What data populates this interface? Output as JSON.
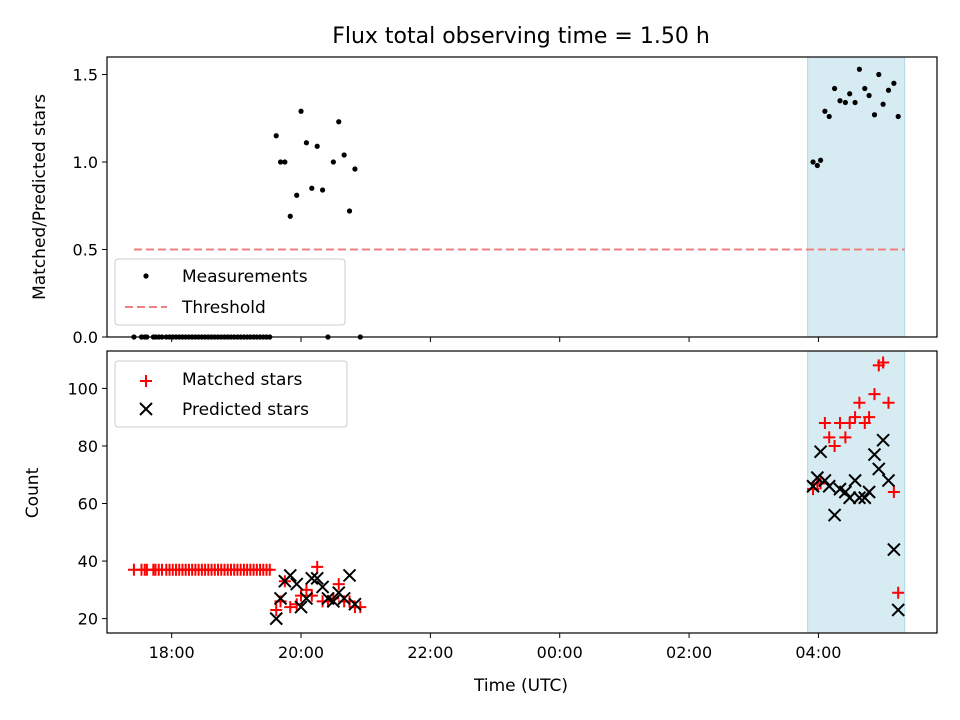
{
  "chart_data": [
    {
      "type": "scatter",
      "title": "Flux total observing time = 1.50 h",
      "xlabel": "",
      "ylabel": "Matched/Predicted stars",
      "xlim": [
        "17:00",
        "05:50"
      ],
      "ylim": [
        0,
        1.6
      ],
      "y_ticks": [
        "0.0",
        "0.5",
        "1.0",
        "1.5"
      ],
      "highlight_span": {
        "start": "03:50",
        "end": "05:20",
        "color": "#add8e6"
      },
      "legend": {
        "position": "lower-left",
        "entries": [
          "Measurements",
          "Threshold"
        ]
      },
      "series": [
        {
          "name": "Measurements",
          "marker": "dot",
          "color": "#000000",
          "points": [
            [
              "17:25",
              0
            ],
            [
              "17:32",
              0
            ],
            [
              "17:35",
              0
            ],
            [
              "17:37",
              0
            ],
            [
              "17:43",
              0
            ],
            [
              "17:45",
              0
            ],
            [
              "17:48",
              0
            ],
            [
              "17:51",
              0
            ],
            [
              "17:55",
              0
            ],
            [
              "17:58",
              0
            ],
            [
              "18:01",
              0
            ],
            [
              "18:04",
              0
            ],
            [
              "18:07",
              0
            ],
            [
              "18:10",
              0
            ],
            [
              "18:13",
              0
            ],
            [
              "18:16",
              0
            ],
            [
              "18:19",
              0
            ],
            [
              "18:22",
              0
            ],
            [
              "18:25",
              0
            ],
            [
              "18:28",
              0
            ],
            [
              "18:31",
              0
            ],
            [
              "18:34",
              0
            ],
            [
              "18:37",
              0
            ],
            [
              "18:40",
              0
            ],
            [
              "18:43",
              0
            ],
            [
              "18:46",
              0
            ],
            [
              "18:49",
              0
            ],
            [
              "18:52",
              0
            ],
            [
              "18:55",
              0
            ],
            [
              "18:58",
              0
            ],
            [
              "19:01",
              0
            ],
            [
              "19:04",
              0
            ],
            [
              "19:07",
              0
            ],
            [
              "19:10",
              0
            ],
            [
              "19:13",
              0
            ],
            [
              "19:16",
              0
            ],
            [
              "19:19",
              0
            ],
            [
              "19:22",
              0
            ],
            [
              "19:25",
              0
            ],
            [
              "19:28",
              0
            ],
            [
              "19:31",
              0
            ],
            [
              "19:37",
              1.15
            ],
            [
              "19:41",
              1.0
            ],
            [
              "19:45",
              1.0
            ],
            [
              "19:50",
              0.69
            ],
            [
              "19:56",
              0.81
            ],
            [
              "20:00",
              1.29
            ],
            [
              "20:05",
              1.11
            ],
            [
              "20:10",
              0.85
            ],
            [
              "20:15",
              1.09
            ],
            [
              "20:20",
              0.84
            ],
            [
              "20:25",
              0.0
            ],
            [
              "20:30",
              1.0
            ],
            [
              "20:35",
              1.23
            ],
            [
              "20:40",
              1.04
            ],
            [
              "20:45",
              0.72
            ],
            [
              "20:50",
              0.96
            ],
            [
              "20:55",
              0.0
            ],
            [
              "03:55",
              1.0
            ],
            [
              "03:59",
              0.98
            ],
            [
              "04:02",
              1.01
            ],
            [
              "04:06",
              1.29
            ],
            [
              "04:10",
              1.26
            ],
            [
              "04:15",
              1.42
            ],
            [
              "04:20",
              1.35
            ],
            [
              "04:25",
              1.34
            ],
            [
              "04:29",
              1.39
            ],
            [
              "04:34",
              1.34
            ],
            [
              "04:38",
              1.53
            ],
            [
              "04:43",
              1.42
            ],
            [
              "04:47",
              1.38
            ],
            [
              "04:52",
              1.27
            ],
            [
              "04:56",
              1.5
            ],
            [
              "05:00",
              1.33
            ],
            [
              "05:05",
              1.41
            ],
            [
              "05:10",
              1.45
            ],
            [
              "05:14",
              1.26
            ]
          ]
        },
        {
          "name": "Threshold",
          "style": "dashed",
          "color": "#f08080",
          "points": [
            [
              "17:25",
              0.5
            ],
            [
              "05:20",
              0.5
            ]
          ]
        }
      ]
    },
    {
      "type": "scatter",
      "title": "",
      "xlabel": "Time (UTC)",
      "ylabel": "Count",
      "xlim": [
        "17:00",
        "05:50"
      ],
      "ylim": [
        15,
        113
      ],
      "x_ticks": [
        "18:00",
        "20:00",
        "22:00",
        "00:00",
        "02:00",
        "04:00"
      ],
      "y_ticks": [
        "20",
        "40",
        "60",
        "80",
        "100"
      ],
      "highlight_span": {
        "start": "03:50",
        "end": "05:20",
        "color": "#add8e6"
      },
      "legend": {
        "position": "upper-left",
        "entries": [
          "Matched stars",
          "Predicted stars"
        ]
      },
      "series": [
        {
          "name": "Matched stars",
          "marker": "plus",
          "color": "#ff0000",
          "points": [
            [
              "17:25",
              37
            ],
            [
              "17:32",
              37
            ],
            [
              "17:35",
              37
            ],
            [
              "17:37",
              37
            ],
            [
              "17:43",
              37
            ],
            [
              "17:45",
              37
            ],
            [
              "17:48",
              37
            ],
            [
              "17:51",
              37
            ],
            [
              "17:55",
              37
            ],
            [
              "17:58",
              37
            ],
            [
              "18:01",
              37
            ],
            [
              "18:04",
              37
            ],
            [
              "18:07",
              37
            ],
            [
              "18:10",
              37
            ],
            [
              "18:13",
              37
            ],
            [
              "18:16",
              37
            ],
            [
              "18:19",
              37
            ],
            [
              "18:22",
              37
            ],
            [
              "18:25",
              37
            ],
            [
              "18:28",
              37
            ],
            [
              "18:31",
              37
            ],
            [
              "18:34",
              37
            ],
            [
              "18:37",
              37
            ],
            [
              "18:40",
              37
            ],
            [
              "18:43",
              37
            ],
            [
              "18:46",
              37
            ],
            [
              "18:49",
              37
            ],
            [
              "18:52",
              37
            ],
            [
              "18:55",
              37
            ],
            [
              "18:58",
              37
            ],
            [
              "19:01",
              37
            ],
            [
              "19:04",
              37
            ],
            [
              "19:07",
              37
            ],
            [
              "19:10",
              37
            ],
            [
              "19:13",
              37
            ],
            [
              "19:16",
              37
            ],
            [
              "19:19",
              37
            ],
            [
              "19:22",
              37
            ],
            [
              "19:25",
              37
            ],
            [
              "19:28",
              37
            ],
            [
              "19:31",
              37
            ],
            [
              "19:37",
              23
            ],
            [
              "19:41",
              26
            ],
            [
              "19:45",
              33
            ],
            [
              "19:50",
              24
            ],
            [
              "19:56",
              25
            ],
            [
              "20:00",
              28
            ],
            [
              "20:05",
              30
            ],
            [
              "20:10",
              28
            ],
            [
              "20:15",
              38
            ],
            [
              "20:20",
              26
            ],
            [
              "20:25",
              26
            ],
            [
              "20:30",
              27
            ],
            [
              "20:35",
              32
            ],
            [
              "20:40",
              26
            ],
            [
              "20:45",
              26
            ],
            [
              "20:50",
              24
            ],
            [
              "20:55",
              24
            ],
            [
              "03:55",
              65
            ],
            [
              "03:59",
              67
            ],
            [
              "04:02",
              67
            ],
            [
              "04:06",
              88
            ],
            [
              "04:10",
              83
            ],
            [
              "04:15",
              80
            ],
            [
              "04:20",
              88
            ],
            [
              "04:25",
              83
            ],
            [
              "04:29",
              88
            ],
            [
              "04:34",
              90
            ],
            [
              "04:38",
              95
            ],
            [
              "04:43",
              88
            ],
            [
              "04:47",
              90
            ],
            [
              "04:52",
              98
            ],
            [
              "04:56",
              108
            ],
            [
              "05:00",
              109
            ],
            [
              "05:05",
              95
            ],
            [
              "05:10",
              64
            ],
            [
              "05:14",
              29
            ]
          ]
        },
        {
          "name": "Predicted stars",
          "marker": "x",
          "color": "#000000",
          "points": [
            [
              "19:37",
              20
            ],
            [
              "19:41",
              27
            ],
            [
              "19:45",
              33
            ],
            [
              "19:50",
              35
            ],
            [
              "19:56",
              32
            ],
            [
              "20:00",
              24
            ],
            [
              "20:05",
              27
            ],
            [
              "20:10",
              34
            ],
            [
              "20:15",
              34
            ],
            [
              "20:20",
              31
            ],
            [
              "20:25",
              27
            ],
            [
              "20:30",
              26
            ],
            [
              "20:35",
              29
            ],
            [
              "20:40",
              27
            ],
            [
              "20:45",
              35
            ],
            [
              "20:50",
              25
            ],
            [
              "03:55",
              66
            ],
            [
              "03:59",
              69
            ],
            [
              "04:02",
              78
            ],
            [
              "04:06",
              68
            ],
            [
              "04:10",
              66
            ],
            [
              "04:15",
              56
            ],
            [
              "04:20",
              65
            ],
            [
              "04:25",
              64
            ],
            [
              "04:29",
              62
            ],
            [
              "04:34",
              68
            ],
            [
              "04:38",
              62
            ],
            [
              "04:43",
              62
            ],
            [
              "04:47",
              64
            ],
            [
              "04:52",
              77
            ],
            [
              "04:56",
              72
            ],
            [
              "05:00",
              82
            ],
            [
              "05:05",
              68
            ],
            [
              "05:10",
              44
            ],
            [
              "05:14",
              23
            ]
          ]
        }
      ]
    }
  ]
}
